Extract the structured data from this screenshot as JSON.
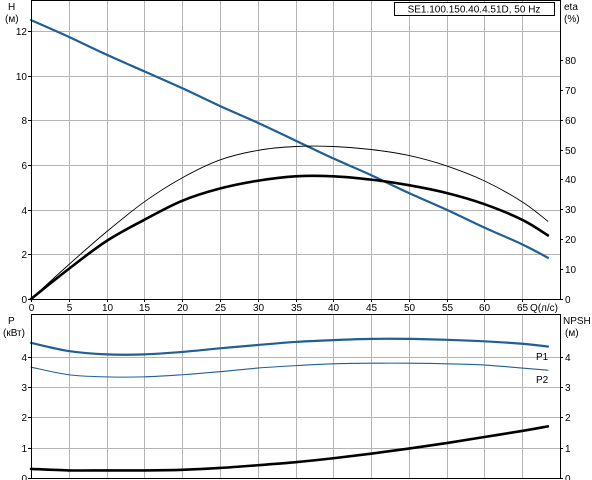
{
  "chart_data": [
    {
      "type": "line",
      "title": "SE1.100.150.40.4.51D, 50 Hz",
      "xlabel": "Q(л/с)",
      "ylabel": "H",
      "ylabel_unit": "(м)",
      "y2label": "eta",
      "y2label_unit": "(%)",
      "xlim": [
        0,
        70
      ],
      "ylim": [
        0,
        13.4
      ],
      "y2lim": [
        0,
        100
      ],
      "xticks": [
        "0",
        "5",
        "10",
        "15",
        "20",
        "25",
        "30",
        "35",
        "40",
        "45",
        "50",
        "55",
        "60",
        "65"
      ],
      "yticks": [
        "0",
        "2",
        "4",
        "6",
        "8",
        "10",
        "12"
      ],
      "y2ticks": [
        "0",
        "10",
        "20",
        "30",
        "40",
        "50",
        "60",
        "70",
        "80"
      ],
      "grid": true,
      "series": [
        {
          "axis": "left",
          "color": "#1f5f96",
          "width": 2.2,
          "x": [
            0,
            5,
            10,
            15,
            20,
            25,
            30,
            35,
            40,
            45,
            50,
            55,
            60,
            65,
            68.4
          ],
          "y": [
            12.5,
            11.75,
            10.95,
            10.2,
            9.45,
            8.65,
            7.9,
            7.1,
            6.3,
            5.55,
            4.75,
            4.0,
            3.2,
            2.45,
            1.85
          ]
        },
        {
          "axis": "left",
          "color": "#000000",
          "width": 2.6,
          "x": [
            0,
            5,
            10,
            15,
            20,
            25,
            30,
            35,
            40,
            45,
            50,
            55,
            60,
            65,
            68.4
          ],
          "y": [
            0,
            1.35,
            2.6,
            3.55,
            4.4,
            4.95,
            5.3,
            5.5,
            5.5,
            5.35,
            5.1,
            4.75,
            4.25,
            3.55,
            2.85
          ]
        },
        {
          "axis": "right",
          "color": "#000000",
          "width": 0.9,
          "x": [
            0,
            5,
            10,
            15,
            20,
            25,
            30,
            35,
            40,
            45,
            50,
            55,
            60,
            65,
            68.4
          ],
          "y": [
            0,
            11.5,
            22.5,
            32.5,
            40.5,
            46.5,
            49.7,
            51,
            51,
            50,
            48,
            44.5,
            39.5,
            32.5,
            26
          ]
        }
      ]
    },
    {
      "type": "line",
      "xlabel": "",
      "ylabel": "P",
      "ylabel_unit": "(кВт)",
      "y2label": "NPSH",
      "y2label_unit": "(м)",
      "xlim": [
        0,
        70
      ],
      "ylim": [
        0,
        5.4
      ],
      "y2lim": [
        0,
        5.4
      ],
      "yticks": [
        "0",
        "1",
        "2",
        "3",
        "4"
      ],
      "y2ticks": [
        "0",
        "1",
        "2",
        "3",
        "4"
      ],
      "grid": true,
      "series": [
        {
          "name": "P1",
          "axis": "left",
          "color": "#1f5f96",
          "width": 2.2,
          "x": [
            0,
            5,
            10,
            15,
            20,
            25,
            30,
            35,
            40,
            45,
            50,
            55,
            60,
            65,
            68.4
          ],
          "y": [
            4.45,
            4.18,
            4.07,
            4.07,
            4.15,
            4.27,
            4.38,
            4.48,
            4.54,
            4.58,
            4.58,
            4.55,
            4.5,
            4.42,
            4.33
          ]
        },
        {
          "name": "P2",
          "axis": "left",
          "color": "#1f5f96",
          "width": 1.1,
          "x": [
            0,
            5,
            10,
            15,
            20,
            25,
            30,
            35,
            40,
            45,
            50,
            55,
            60,
            65,
            68.4
          ],
          "y": [
            3.65,
            3.4,
            3.33,
            3.33,
            3.4,
            3.5,
            3.62,
            3.7,
            3.76,
            3.78,
            3.78,
            3.76,
            3.72,
            3.62,
            3.55
          ]
        },
        {
          "name": "",
          "axis": "right",
          "color": "#000000",
          "width": 2.6,
          "x": [
            0,
            5,
            10,
            15,
            20,
            25,
            30,
            35,
            40,
            45,
            50,
            55,
            60,
            65,
            68.4
          ],
          "y": [
            0.3,
            0.25,
            0.25,
            0.25,
            0.27,
            0.33,
            0.42,
            0.52,
            0.65,
            0.8,
            0.97,
            1.15,
            1.35,
            1.55,
            1.7
          ]
        }
      ]
    }
  ]
}
